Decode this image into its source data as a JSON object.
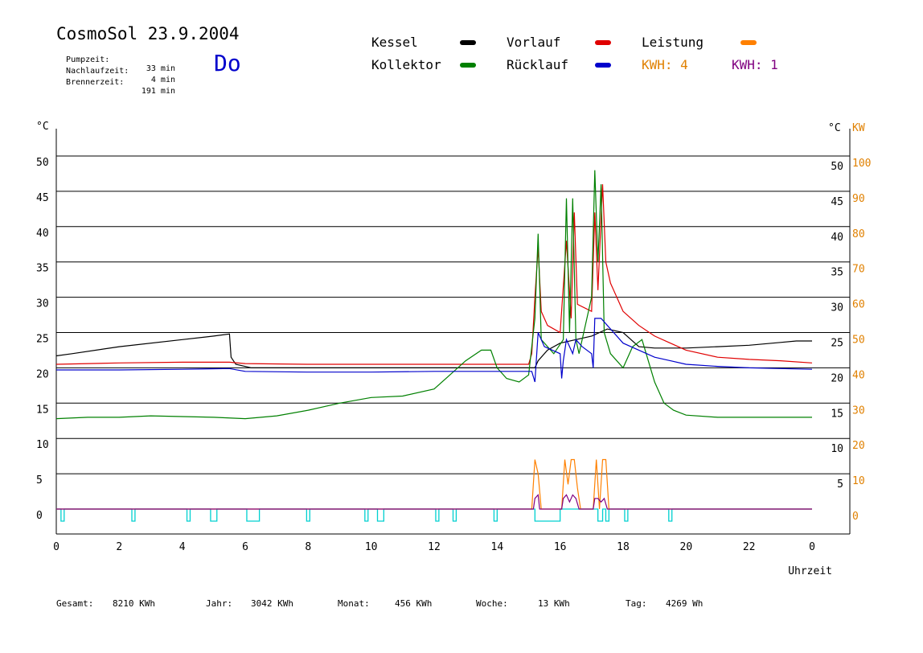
{
  "header": {
    "title": "CosmoSol 23.9.2004",
    "info": [
      {
        "label": "Pumpzeit:",
        "value": "33 min"
      },
      {
        "label": "Nachlaufzeit:",
        "value": "4 min"
      },
      {
        "label": "Brennerzeit:",
        "value": "191 min"
      }
    ],
    "day": "Do"
  },
  "legend": {
    "kessel": {
      "label": "Kessel",
      "color": "#000000"
    },
    "vorlauf": {
      "label": "Vorlauf",
      "color": "#e00000"
    },
    "leistung": {
      "label": "Leistung",
      "color": "#ff8000"
    },
    "kollektor": {
      "label": "Kollektor",
      "color": "#008000"
    },
    "ruecklauf": {
      "label": "Rücklauf",
      "color": "#0000cc"
    },
    "kwh_orange": {
      "label": "KWH: 4",
      "color": "#e08000"
    },
    "kwh_purple": {
      "label": "KWH: 1",
      "color": "#800080"
    }
  },
  "footer": {
    "gesamt": {
      "label": "Gesamt:",
      "value": "8210 KWh"
    },
    "jahr": {
      "label": "Jahr:",
      "value": "3042 KWh"
    },
    "monat": {
      "label": "Monat:",
      "value": "456 KWh"
    },
    "woche": {
      "label": "Woche:",
      "value": "13 KWh"
    },
    "tag": {
      "label": "Tag:",
      "value": "4269 Wh"
    }
  },
  "chart_data": {
    "type": "line",
    "title": "CosmoSol 23.9.2004",
    "xlabel": "Uhrzeit",
    "ylabel_left": "°C",
    "ylabel_right_temp": "°C",
    "ylabel_right_power": "KW",
    "xlim": [
      0,
      24
    ],
    "ylim": [
      0,
      50
    ],
    "ylim_power": [
      0,
      100
    ],
    "x_ticks": [
      "0",
      "2",
      "4",
      "6",
      "8",
      "10",
      "12",
      "14",
      "16",
      "18",
      "20",
      "22",
      "0"
    ],
    "y_ticks_left": [
      "50",
      "45",
      "40",
      "35",
      "30",
      "25",
      "20",
      "15",
      "10",
      "5",
      "0"
    ],
    "y_ticks_right": [
      "50",
      "45",
      "40",
      "35",
      "30",
      "25",
      "20",
      "15",
      "10",
      "5"
    ],
    "y_ticks_power": [
      "100",
      "90",
      "80",
      "70",
      "60",
      "50",
      "40",
      "30",
      "20",
      "10",
      "0"
    ],
    "grid": true,
    "series": [
      {
        "name": "Kessel",
        "color": "#000000",
        "x": [
          0,
          0.5,
          2,
          4,
          5,
          5.5,
          5.55,
          5.7,
          6.2,
          8,
          12,
          14,
          15.2,
          15.3,
          15.6,
          16,
          16.5,
          17,
          17.5,
          18,
          18.5,
          19,
          20,
          21,
          22,
          23,
          23.5,
          24
        ],
        "y": [
          21.7,
          22,
          23,
          24,
          24.5,
          24.8,
          21.5,
          20.5,
          20,
          20,
          20,
          20,
          20,
          21,
          22.5,
          23.5,
          24,
          24.5,
          25.5,
          25,
          23,
          22.8,
          22.8,
          23,
          23.2,
          23.6,
          23.8,
          23.8
        ]
      },
      {
        "name": "Vorlauf",
        "color": "#e00000",
        "x": [
          0,
          2,
          4,
          5.5,
          6,
          8,
          10,
          12,
          14,
          15,
          15.1,
          15.2,
          15.3,
          15.4,
          15.6,
          16,
          16.2,
          16.35,
          16.45,
          16.55,
          17,
          17.1,
          17.2,
          17.35,
          17.45,
          17.6,
          18,
          18.5,
          19,
          19.5,
          20,
          21,
          22,
          23,
          24
        ],
        "y": [
          20.5,
          20.7,
          20.8,
          20.8,
          20.6,
          20.5,
          20.5,
          20.5,
          20.5,
          20.5,
          22,
          30,
          37,
          28,
          26,
          25,
          38,
          27,
          42,
          29,
          28,
          42,
          31,
          46,
          35,
          32,
          28,
          26,
          24.5,
          23.5,
          22.5,
          21.5,
          21.2,
          21,
          20.7
        ]
      },
      {
        "name": "Kollektor",
        "color": "#008000",
        "x": [
          0,
          1,
          2,
          3,
          4,
          5,
          6,
          7,
          8,
          9,
          10,
          11,
          12,
          12.5,
          13,
          13.5,
          13.8,
          14,
          14.3,
          14.7,
          15,
          15.2,
          15.3,
          15.4,
          15.8,
          16.1,
          16.2,
          16.3,
          16.4,
          16.5,
          16.6,
          17,
          17.1,
          17.2,
          17.3,
          17.4,
          17.6,
          18,
          18.3,
          18.6,
          19,
          19.3,
          19.6,
          20,
          21,
          22,
          23,
          24
        ],
        "y": [
          12.8,
          13,
          13,
          13.2,
          13.1,
          13,
          12.8,
          13.2,
          14,
          15,
          15.8,
          16,
          17,
          19,
          21,
          22.5,
          22.5,
          20,
          18.5,
          18,
          19,
          27,
          39,
          24,
          22,
          24,
          44,
          25,
          44,
          24,
          22,
          30,
          48,
          35,
          46,
          25,
          22,
          20,
          23,
          24,
          18,
          15,
          14,
          13.3,
          13,
          13,
          13,
          13
        ]
      },
      {
        "name": "Rücklauf",
        "color": "#0000cc",
        "x": [
          0,
          2,
          4,
          5.5,
          6,
          8,
          10,
          12,
          14,
          15,
          15.1,
          15.2,
          15.3,
          15.5,
          16,
          16.05,
          16.1,
          16.2,
          16.4,
          16.5,
          16.7,
          17,
          17.05,
          17.1,
          17.3,
          17.5,
          18,
          18.5,
          19,
          19.5,
          20,
          21,
          22,
          23,
          24
        ],
        "y": [
          19.7,
          19.7,
          19.8,
          19.9,
          19.5,
          19.4,
          19.4,
          19.5,
          19.5,
          19.5,
          19.5,
          18,
          25,
          23,
          22,
          18.5,
          21,
          24,
          22,
          24,
          23,
          22,
          20,
          27,
          27,
          26,
          23.5,
          22.5,
          21.5,
          21,
          20.5,
          20.2,
          20,
          19.9,
          19.8
        ]
      },
      {
        "name": "Leistung",
        "color": "#ff8000",
        "axis": "power",
        "x": [
          0,
          15.1,
          15.2,
          15.3,
          15.4,
          16,
          16.05,
          16.15,
          16.25,
          16.35,
          16.45,
          16.55,
          16.65,
          17,
          17.05,
          17.15,
          17.25,
          17.35,
          17.45,
          17.55,
          24
        ],
        "y": [
          0,
          0,
          14,
          10,
          0,
          0,
          0,
          14,
          7,
          14,
          14,
          6,
          0,
          0,
          0,
          14,
          0,
          14,
          14,
          0,
          0
        ]
      },
      {
        "name": "KWH",
        "color": "#800080",
        "axis": "power",
        "x": [
          0,
          15.15,
          15.2,
          15.3,
          15.35,
          16.05,
          16.1,
          16.2,
          16.3,
          16.4,
          16.5,
          16.6,
          17.05,
          17.1,
          17.2,
          17.3,
          17.4,
          17.5,
          24
        ],
        "y": [
          0,
          0,
          3,
          4,
          0,
          0,
          3,
          4,
          2,
          4,
          3,
          0,
          0,
          3,
          3,
          2,
          3,
          0,
          0
        ]
      }
    ],
    "pump_intervals": [
      [
        0.15,
        0.25
      ],
      [
        2.4,
        2.5
      ],
      [
        4.15,
        4.25
      ],
      [
        4.9,
        5.1
      ],
      [
        6.05,
        6.45
      ],
      [
        7.95,
        8.05
      ],
      [
        9.8,
        9.9
      ],
      [
        10.2,
        10.4
      ],
      [
        12.05,
        12.15
      ],
      [
        12.6,
        12.7
      ],
      [
        13.9,
        14
      ],
      [
        15.2,
        16
      ],
      [
        17.2,
        17.35
      ],
      [
        17.45,
        17.55
      ],
      [
        18.05,
        18.15
      ],
      [
        19.45,
        19.55
      ]
    ],
    "pump_color": "#00d0d0"
  }
}
